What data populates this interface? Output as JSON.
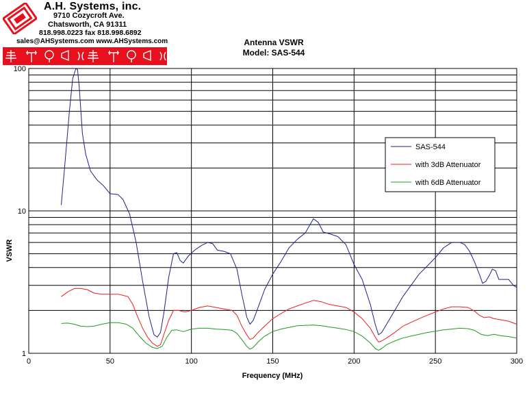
{
  "header": {
    "company": "A.H. Systems, inc.",
    "address_line1": "9710 Cozycroft Ave.",
    "address_line2": "Chatsworth, CA 91311",
    "phone_fax": "818.998.0223 fax 818.998.6892",
    "email_web": "sales@AHSystems.com www.AHSystems.com",
    "logo_color": "#e8101c"
  },
  "chart_data": {
    "type": "line",
    "title": "Antenna VSWR",
    "subtitle": "Model: SAS-544",
    "xlabel": "Frequency (MHz)",
    "ylabel": "VSWR",
    "xlim": [
      0,
      300
    ],
    "ylim": [
      1,
      100
    ],
    "yscale": "log",
    "x_ticks": [
      "0",
      "50",
      "100",
      "150",
      "200",
      "250",
      "300"
    ],
    "y_ticks": [
      "1",
      "10",
      "100"
    ],
    "grid": true,
    "legend_position": "right",
    "series": [
      {
        "name": "SAS-544",
        "color": "#1f1f8c",
        "x": [
          20,
          22,
          25,
          27,
          29,
          30,
          31,
          33,
          35,
          38,
          42,
          46,
          50,
          55,
          58,
          62,
          66,
          70,
          74,
          77,
          79,
          81,
          83,
          86,
          89,
          91,
          93,
          95,
          98,
          102,
          106,
          110,
          113,
          116,
          120,
          124,
          128,
          131,
          134,
          136,
          138,
          141,
          145,
          150,
          155,
          160,
          165,
          170,
          175,
          178,
          181,
          185,
          190,
          195,
          200,
          205,
          210,
          213,
          215,
          217,
          220,
          225,
          230,
          235,
          240,
          245,
          250,
          255,
          260,
          265,
          268,
          271,
          274,
          277,
          279,
          281,
          283,
          285,
          287,
          289,
          292,
          295,
          298,
          300
        ],
        "values": [
          11,
          20,
          50,
          85,
          100,
          98,
          75,
          35,
          25,
          19,
          16.5,
          15,
          13.2,
          13,
          12,
          9.5,
          6,
          3.2,
          1.8,
          1.35,
          1.3,
          1.4,
          1.9,
          3.4,
          5.0,
          5.1,
          4.5,
          4.3,
          4.8,
          5.3,
          5.7,
          6.0,
          5.9,
          5.3,
          5.2,
          5.0,
          3.9,
          2.6,
          1.8,
          1.6,
          1.7,
          2.1,
          2.8,
          3.6,
          4.4,
          5.5,
          6.3,
          7.0,
          8.8,
          8.3,
          7.1,
          6.9,
          6.6,
          5.8,
          4.2,
          3.3,
          2.2,
          1.6,
          1.35,
          1.4,
          1.6,
          2.0,
          2.5,
          3.0,
          3.6,
          4.1,
          4.7,
          5.5,
          6.0,
          6.0,
          5.8,
          5.2,
          4.4,
          3.6,
          3.1,
          3.2,
          3.5,
          3.9,
          3.8,
          3.3,
          3.3,
          3.3,
          3.0,
          2.9
        ]
      },
      {
        "name": "with 3dB Attenuator",
        "color": "#ee1c1c",
        "x": [
          20,
          24,
          28,
          32,
          36,
          40,
          45,
          50,
          55,
          58,
          61,
          64,
          67,
          70,
          73,
          76,
          79,
          81,
          83,
          86,
          89,
          92,
          96,
          100,
          105,
          110,
          115,
          120,
          125,
          128,
          131,
          134,
          136,
          138,
          141,
          145,
          150,
          155,
          160,
          165,
          170,
          175,
          180,
          185,
          190,
          195,
          200,
          205,
          210,
          213,
          215,
          217,
          220,
          225,
          230,
          235,
          240,
          245,
          250,
          255,
          260,
          265,
          270,
          274,
          277,
          280,
          283,
          286,
          290,
          295,
          300
        ],
        "values": [
          2.5,
          2.7,
          2.85,
          2.85,
          2.8,
          2.65,
          2.6,
          2.6,
          2.6,
          2.55,
          2.5,
          2.2,
          1.8,
          1.5,
          1.3,
          1.18,
          1.12,
          1.15,
          1.35,
          1.7,
          2.0,
          2.0,
          1.95,
          2.0,
          2.1,
          2.15,
          2.1,
          2.05,
          2.0,
          1.85,
          1.55,
          1.35,
          1.25,
          1.28,
          1.4,
          1.55,
          1.75,
          1.9,
          2.05,
          2.15,
          2.25,
          2.35,
          2.3,
          2.2,
          2.15,
          2.1,
          1.95,
          1.75,
          1.5,
          1.3,
          1.2,
          1.22,
          1.28,
          1.4,
          1.55,
          1.65,
          1.75,
          1.85,
          1.95,
          2.05,
          2.12,
          2.12,
          2.1,
          1.98,
          1.85,
          1.78,
          1.8,
          1.75,
          1.72,
          1.68,
          1.6
        ]
      },
      {
        "name": "with 6dB Attenuator",
        "color": "#1f9a1f",
        "x": [
          20,
          24,
          28,
          32,
          36,
          40,
          45,
          50,
          55,
          60,
          64,
          68,
          72,
          76,
          79,
          82,
          85,
          88,
          91,
          95,
          100,
          105,
          110,
          115,
          120,
          125,
          128,
          131,
          134,
          136,
          138,
          141,
          145,
          150,
          155,
          160,
          165,
          170,
          175,
          180,
          185,
          190,
          195,
          200,
          205,
          210,
          213,
          215,
          217,
          220,
          225,
          230,
          235,
          240,
          245,
          250,
          255,
          260,
          265,
          270,
          274,
          278,
          282,
          286,
          290,
          295,
          300
        ],
        "values": [
          1.62,
          1.63,
          1.6,
          1.55,
          1.54,
          1.55,
          1.6,
          1.64,
          1.64,
          1.6,
          1.5,
          1.32,
          1.18,
          1.1,
          1.08,
          1.12,
          1.3,
          1.45,
          1.46,
          1.42,
          1.48,
          1.5,
          1.5,
          1.48,
          1.47,
          1.45,
          1.38,
          1.25,
          1.12,
          1.07,
          1.1,
          1.2,
          1.32,
          1.42,
          1.48,
          1.52,
          1.56,
          1.57,
          1.58,
          1.56,
          1.53,
          1.5,
          1.47,
          1.42,
          1.32,
          1.18,
          1.08,
          1.05,
          1.08,
          1.15,
          1.22,
          1.28,
          1.32,
          1.36,
          1.4,
          1.43,
          1.46,
          1.48,
          1.5,
          1.49,
          1.45,
          1.36,
          1.33,
          1.36,
          1.33,
          1.31,
          1.28
        ]
      }
    ]
  }
}
